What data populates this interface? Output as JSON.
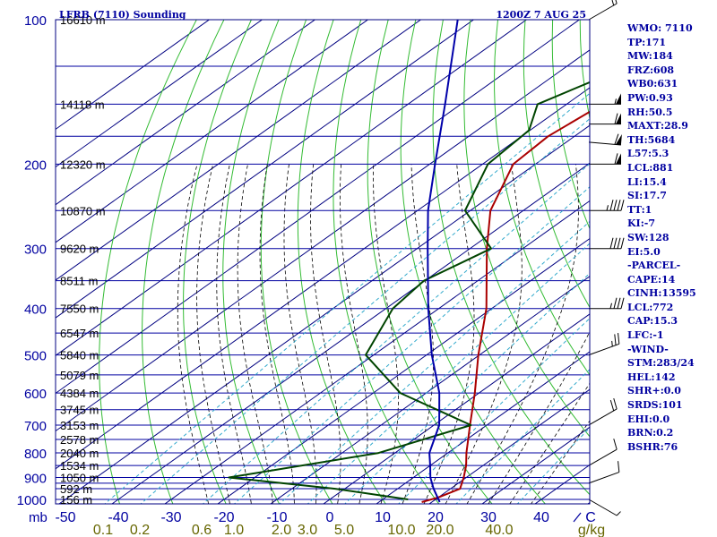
{
  "header": {
    "station": "LFRB (7110) Sounding",
    "time": "1200Z  7 AUG 25"
  },
  "colors": {
    "isobar": "#0000a0",
    "isotherm": "#000080",
    "dry_adiabat": "#33bb33",
    "moist_adiabat": "#000000",
    "mixing_ratio": "#33aacc",
    "temperature": "#aa0000",
    "dewpoint": "#004400",
    "parcel": "#0000aa",
    "text": "#0000a0",
    "mixing_label": "#666600"
  },
  "chart_data": {
    "type": "line",
    "pressure_levels": [
      {
        "p": "100",
        "h": "16610 m"
      },
      {
        "p": "",
        "h": "14118 m"
      },
      {
        "p": "200",
        "h": "12320 m"
      },
      {
        "p": "",
        "h": "10870 m"
      },
      {
        "p": "300",
        "h": "9620 m"
      },
      {
        "p": "",
        "h": "8511 m"
      },
      {
        "p": "400",
        "h": "7550 m"
      },
      {
        "p": "",
        "h": "6547 m"
      },
      {
        "p": "500",
        "h": "5840 m"
      },
      {
        "p": "",
        "h": "5079 m"
      },
      {
        "p": "600",
        "h": "4384 m"
      },
      {
        "p": "",
        "h": "3745 m"
      },
      {
        "p": "700",
        "h": "3153 m"
      },
      {
        "p": "",
        "h": "2578 m"
      },
      {
        "p": "800",
        "h": "2040 m"
      },
      {
        "p": "",
        "h": "1534 m"
      },
      {
        "p": "900",
        "h": "1050 m"
      },
      {
        "p": "",
        "h": "592 m"
      },
      {
        "p": "1000",
        "h": "156 m"
      }
    ],
    "pressure_unit": "mb",
    "temperature_ticks": [
      "-50",
      "-40",
      "-30",
      "-20",
      "-10",
      "0",
      "10",
      "20",
      "30",
      "40"
    ],
    "temperature_unit": "C",
    "mixing_ratio_labels": [
      "0.1",
      "0.2",
      "0.6",
      "1.0",
      "2.0",
      "3.0",
      "5.0",
      "10.0",
      "20.0",
      "40.0"
    ],
    "mixing_ratio_unit": "g/kg",
    "series": [
      {
        "role": "temperature",
        "points": [
          [
            1013,
            18.1
          ],
          [
            990,
            20.0
          ],
          [
            950,
            21.8
          ],
          [
            900,
            19.5
          ],
          [
            850,
            16.8
          ],
          [
            800,
            13.5
          ],
          [
            700,
            6.8
          ],
          [
            600,
            -0.8
          ],
          [
            500,
            -10.2
          ],
          [
            400,
            -21.0
          ],
          [
            300,
            -36.8
          ],
          [
            250,
            -46.2
          ],
          [
            200,
            -54.2
          ],
          [
            175,
            -55.0
          ],
          [
            150,
            -53.2
          ],
          [
            130,
            -47.6
          ],
          [
            115,
            -40.8
          ],
          [
            100,
            -33.8
          ]
        ]
      },
      {
        "role": "dewpoint",
        "points": [
          [
            1000,
            14.8
          ],
          [
            950,
            -1.8
          ],
          [
            900,
            -24.9
          ],
          [
            800,
            -3.1
          ],
          [
            700,
            7.0
          ],
          [
            600,
            -14.9
          ],
          [
            500,
            -31.5
          ],
          [
            400,
            -38.7
          ],
          [
            350,
            -40.2
          ],
          [
            300,
            -36.0
          ],
          [
            250,
            -51.0
          ],
          [
            200,
            -59.0
          ],
          [
            170,
            -60.2
          ],
          [
            150,
            -65.5
          ],
          [
            130,
            -60.0
          ],
          [
            100,
            -69.0
          ]
        ]
      },
      {
        "role": "parcel",
        "points": [
          [
            1013,
            21.5
          ],
          [
            950,
            16.8
          ],
          [
            900,
            13.2
          ],
          [
            850,
            10.0
          ],
          [
            800,
            6.5
          ],
          [
            700,
            1.0
          ],
          [
            600,
            -7.5
          ],
          [
            500,
            -19.0
          ],
          [
            400,
            -32.0
          ],
          [
            300,
            -48.0
          ],
          [
            250,
            -58.0
          ],
          [
            200,
            -69.0
          ],
          [
            150,
            -83.0
          ],
          [
            100,
            -103.0
          ]
        ]
      }
    ],
    "wind_barbs": [
      {
        "p": 100,
        "dir": 300,
        "kt": 15
      },
      {
        "p": 150,
        "dir": 270,
        "kt": 55
      },
      {
        "p": 165,
        "dir": 270,
        "kt": 60
      },
      {
        "p": 180,
        "dir": 265,
        "kt": 60
      },
      {
        "p": 200,
        "dir": 270,
        "kt": 60
      },
      {
        "p": 250,
        "dir": 270,
        "kt": 45
      },
      {
        "p": 300,
        "dir": 270,
        "kt": 40
      },
      {
        "p": 400,
        "dir": 270,
        "kt": 35
      },
      {
        "p": 500,
        "dir": 290,
        "kt": 25
      },
      {
        "p": 700,
        "dir": 300,
        "kt": 20
      },
      {
        "p": 850,
        "dir": 300,
        "kt": 10
      },
      {
        "p": 925,
        "dir": 290,
        "kt": 10
      },
      {
        "p": 1000,
        "dir": 240,
        "kt": 5
      }
    ]
  },
  "stats": [
    "WMO: 7110",
    "TP:171",
    "MW:184",
    "FRZ:608",
    "WB0:631",
    "PW:0.93",
    "RH:50.5",
    "MAXT:28.9",
    "TH:5684",
    "L57:5.3",
    "LCL:881",
    "LI:15.4",
    "SI:17.7",
    "TT:1",
    "KI:-7",
    "SW:128",
    "EI:5.0",
    "-PARCEL-",
    "CAPE:14",
    "CINH:13595",
    "LCL:772",
    "CAP:15.3",
    "LFC:-1",
    "-WIND-",
    "STM:283/24",
    "HEL:142",
    "SHR+:0.0",
    "SRDS:101",
    "EHI:0.0",
    "BRN:0.2",
    "BSHR:76"
  ]
}
